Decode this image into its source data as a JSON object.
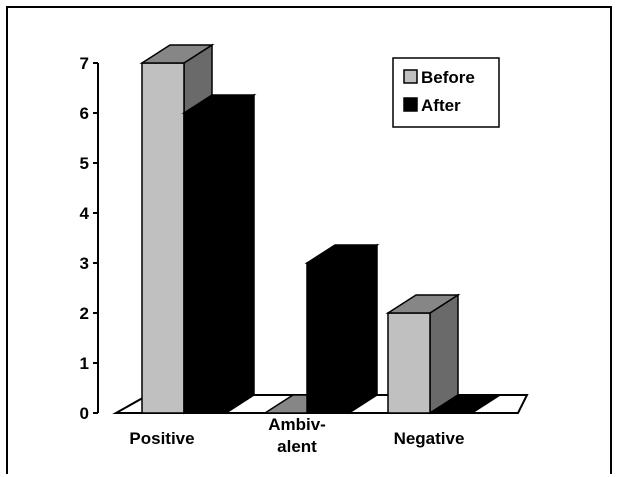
{
  "chart_data": {
    "type": "bar",
    "style": "3d-clustered-column",
    "categories": [
      [
        "Positive"
      ],
      [
        "Ambiv-",
        "alent"
      ],
      [
        "Negative"
      ]
    ],
    "series": [
      {
        "name": "Before",
        "values": [
          7,
          0,
          2
        ],
        "color": "#c0c0c0"
      },
      {
        "name": "After",
        "values": [
          6,
          3,
          0
        ],
        "color": "#000000"
      }
    ],
    "y_ticks": [
      "0",
      "1",
      "2",
      "3",
      "4",
      "5",
      "6",
      "7"
    ],
    "ylim": [
      0,
      7
    ],
    "legend_position": "top-right"
  }
}
